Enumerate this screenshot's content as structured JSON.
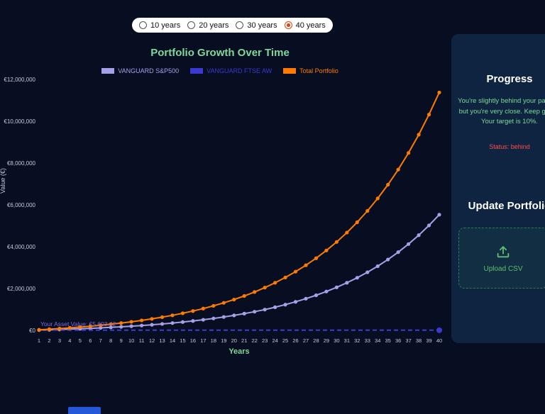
{
  "app": {
    "background": "#070e22",
    "panel_background": "#0e2440",
    "accent_green": "#7fd99a"
  },
  "time_range_options": [
    {
      "label": "10 years",
      "selected": false
    },
    {
      "label": "20 years",
      "selected": false
    },
    {
      "label": "30 years",
      "selected": false
    },
    {
      "label": "40 years",
      "selected": true
    }
  ],
  "chart_data": {
    "type": "line",
    "title": "Portfolio Growth Over Time",
    "xlabel": "Years",
    "ylabel": "Value (€)",
    "legend_position": "top",
    "grid": false,
    "x": [
      1,
      2,
      3,
      4,
      5,
      6,
      7,
      8,
      9,
      10,
      11,
      12,
      13,
      14,
      15,
      16,
      17,
      18,
      19,
      20,
      21,
      22,
      23,
      24,
      25,
      26,
      27,
      28,
      29,
      30,
      31,
      32,
      33,
      34,
      35,
      36,
      37,
      38,
      39,
      40
    ],
    "ylim": [
      0,
      12000000
    ],
    "yticks": [
      {
        "value": 0,
        "label": "€0"
      },
      {
        "value": 2000000,
        "label": "€2,000,000"
      },
      {
        "value": 4000000,
        "label": "€4,000,000"
      },
      {
        "value": 6000000,
        "label": "€6,000,000"
      },
      {
        "value": 8000000,
        "label": "€8,000,000"
      },
      {
        "value": 10000000,
        "label": "€10,000,000"
      },
      {
        "value": 12000000,
        "label": "€12,000,000"
      }
    ],
    "series": [
      {
        "name": "VANGUARD S&P500",
        "color": "#a6a0e8",
        "dashed": false,
        "markers": "all",
        "values": [
          12500,
          26250,
          41375,
          58013,
          76314,
          96445,
          118590,
          142949,
          169743,
          199218,
          231640,
          267304,
          306534,
          349687,
          397156,
          449372,
          506809,
          569990,
          639489,
          715937,
          800031,
          892534,
          994288,
          1106217,
          1229338,
          1364772,
          1513749,
          1677624,
          1857887,
          2056175,
          2274293,
          2514222,
          2778144,
          3068459,
          3387805,
          3739085,
          4125494,
          4550543,
          5018097,
          5532407
        ]
      },
      {
        "name": "VANGUARD FTSE AW",
        "color": "#3a3ad0",
        "dashed": true,
        "markers": "last",
        "values": [
          5603.42,
          5603.42,
          5603.42,
          5603.42,
          5603.42,
          5603.42,
          5603.42,
          5603.42,
          5603.42,
          5603.42,
          5603.42,
          5603.42,
          5603.42,
          5603.42,
          5603.42,
          5603.42,
          5603.42,
          5603.42,
          5603.42,
          5603.42,
          5603.42,
          5603.42,
          5603.42,
          5603.42,
          5603.42,
          5603.42,
          5603.42,
          5603.42,
          5603.42,
          5603.42,
          5603.42,
          5603.42,
          5603.42,
          5603.42,
          5603.42,
          5603.42,
          5603.42,
          5603.42,
          5603.42,
          5603.42
        ]
      },
      {
        "name": "Total Portfolio",
        "color": "#ff7b00",
        "dashed": false,
        "markers": "all",
        "values": [
          25700,
          53970,
          85067,
          119274,
          156901,
          198291,
          243820,
          293902,
          348993,
          409592,
          476251,
          549576,
          630234,
          718957,
          816553,
          923908,
          1041999,
          1171899,
          1314789,
          1471967,
          1644864,
          1835051,
          2044256,
          2274381,
          2527519,
          2805971,
          3112269,
          3449195,
          3819815,
          4227496,
          4675946,
          5169241,
          5711865,
          6308751,
          6965326,
          7687559,
          8482015,
          9355916,
          10317208,
          11374629
        ]
      }
    ],
    "annotation": {
      "text": "Your Asset Value: €5,603.42",
      "value": 5603.42,
      "color": "#7d6ce0"
    }
  },
  "sidebar": {
    "progress_title": "Progress",
    "progress_message": "You're slightly behind your pace — but you're very close. Keep going! Your target is 10%.",
    "status": "Status: behind",
    "status_color": "#ff4d4d",
    "update_title": "Update Portfolio",
    "upload_button": "Upload CSV",
    "upload_green": "#5fbf6f"
  }
}
